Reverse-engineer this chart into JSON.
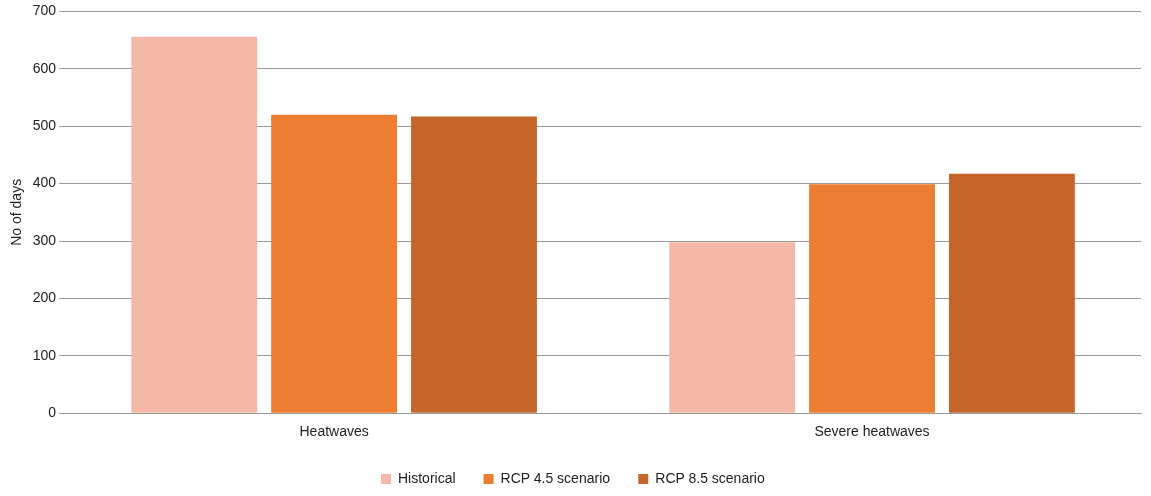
{
  "chart_data": {
    "type": "bar",
    "ylabel": "No of days",
    "categories": [
      "Heatwaves",
      "Severe heatwaves"
    ],
    "series": [
      {
        "name": "Historical",
        "color": "#f4b8a6",
        "values": [
          656,
          298
        ]
      },
      {
        "name": "RCP 4.5 scenario",
        "color": "#ed7d31",
        "values": [
          520,
          399
        ]
      },
      {
        "name": "RCP 8.5 scenario",
        "color": "#c4652a",
        "values": [
          517,
          417
        ]
      }
    ],
    "ylim": [
      0,
      700
    ],
    "yticks": [
      0,
      100,
      200,
      300,
      400,
      500,
      600,
      700
    ],
    "grid": "y",
    "legend": "bottom"
  }
}
